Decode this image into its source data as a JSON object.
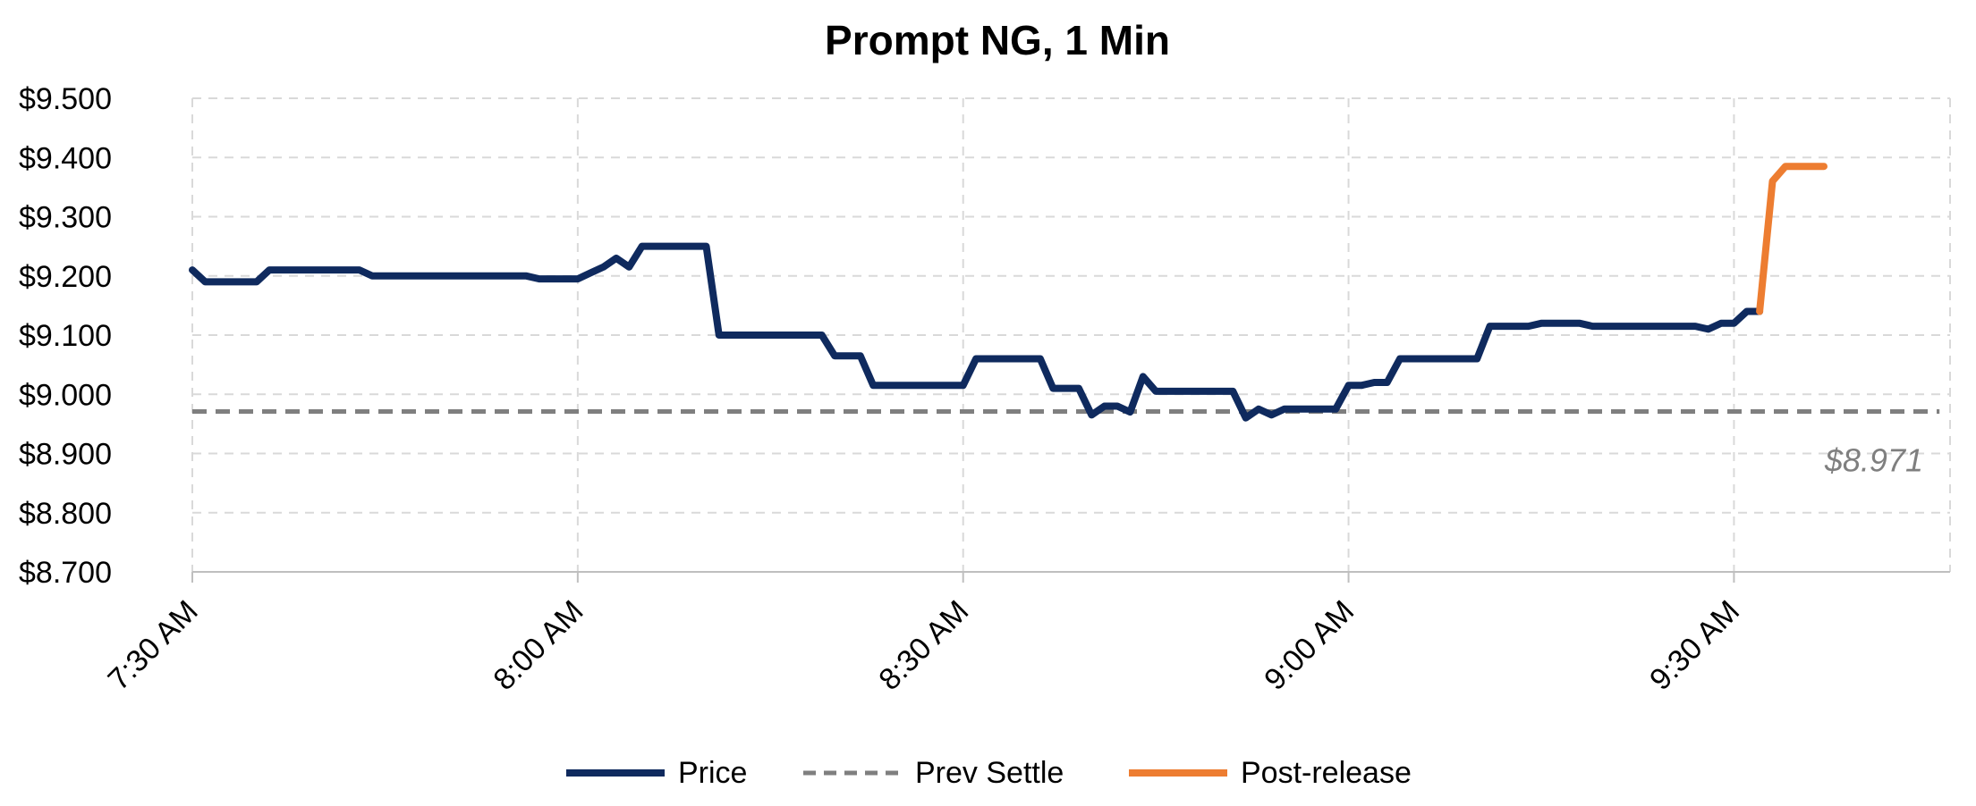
{
  "chart_data": {
    "type": "line",
    "title": "Prompt NG, 1 Min",
    "xlabel": "",
    "ylabel": "",
    "x_ticks": [
      "7:30 AM",
      "8:00 AM",
      "8:30 AM",
      "9:00 AM",
      "9:30 AM"
    ],
    "x_range_minutes_after_730": [
      0,
      136
    ],
    "y_ticks": [
      "$9.500",
      "$9.400",
      "$9.300",
      "$9.200",
      "$9.100",
      "$9.000",
      "$8.900",
      "$8.800",
      "$8.700"
    ],
    "ylim": [
      8.7,
      9.5
    ],
    "grid": true,
    "legend_position": "bottom",
    "colors": {
      "price": "#0f2a5e",
      "prev_settle": "#7f7f7f",
      "post_release": "#ed7d31",
      "grid": "#d9d9d9",
      "axis": "#d9d9d9"
    },
    "series": [
      {
        "name": "Price",
        "style": "solid",
        "points": [
          [
            0,
            9.21
          ],
          [
            1,
            9.19
          ],
          [
            2,
            9.19
          ],
          [
            3,
            9.19
          ],
          [
            4,
            9.19
          ],
          [
            5,
            9.19
          ],
          [
            6,
            9.21
          ],
          [
            7,
            9.21
          ],
          [
            8,
            9.21
          ],
          [
            9,
            9.21
          ],
          [
            10,
            9.21
          ],
          [
            11,
            9.21
          ],
          [
            12,
            9.21
          ],
          [
            13,
            9.21
          ],
          [
            14,
            9.2
          ],
          [
            15,
            9.2
          ],
          [
            16,
            9.2
          ],
          [
            17,
            9.2
          ],
          [
            18,
            9.2
          ],
          [
            19,
            9.2
          ],
          [
            20,
            9.2
          ],
          [
            21,
            9.2
          ],
          [
            22,
            9.2
          ],
          [
            23,
            9.2
          ],
          [
            24,
            9.2
          ],
          [
            25,
            9.2
          ],
          [
            26,
            9.2
          ],
          [
            27,
            9.195
          ],
          [
            28,
            9.195
          ],
          [
            29,
            9.195
          ],
          [
            30,
            9.195
          ],
          [
            31,
            9.205
          ],
          [
            32,
            9.215
          ],
          [
            33,
            9.23
          ],
          [
            34,
            9.215
          ],
          [
            35,
            9.25
          ],
          [
            36,
            9.25
          ],
          [
            37,
            9.25
          ],
          [
            38,
            9.25
          ],
          [
            39,
            9.25
          ],
          [
            40,
            9.25
          ],
          [
            41,
            9.1
          ],
          [
            42,
            9.1
          ],
          [
            43,
            9.1
          ],
          [
            44,
            9.1
          ],
          [
            45,
            9.1
          ],
          [
            46,
            9.1
          ],
          [
            47,
            9.1
          ],
          [
            48,
            9.1
          ],
          [
            49,
            9.1
          ],
          [
            50,
            9.065
          ],
          [
            51,
            9.065
          ],
          [
            52,
            9.065
          ],
          [
            53,
            9.015
          ],
          [
            54,
            9.015
          ],
          [
            55,
            9.015
          ],
          [
            56,
            9.015
          ],
          [
            57,
            9.015
          ],
          [
            58,
            9.015
          ],
          [
            59,
            9.015
          ],
          [
            60,
            9.015
          ],
          [
            61,
            9.06
          ],
          [
            62,
            9.06
          ],
          [
            63,
            9.06
          ],
          [
            64,
            9.06
          ],
          [
            65,
            9.06
          ],
          [
            66,
            9.06
          ],
          [
            67,
            9.01
          ],
          [
            68,
            9.01
          ],
          [
            69,
            9.01
          ],
          [
            70,
            8.965
          ],
          [
            71,
            8.98
          ],
          [
            72,
            8.98
          ],
          [
            73,
            8.97
          ],
          [
            74,
            9.03
          ],
          [
            75,
            9.005
          ],
          [
            76,
            9.005
          ],
          [
            77,
            9.005
          ],
          [
            78,
            9.005
          ],
          [
            79,
            9.005
          ],
          [
            80,
            9.005
          ],
          [
            81,
            9.005
          ],
          [
            82,
            8.96
          ],
          [
            83,
            8.975
          ],
          [
            84,
            8.965
          ],
          [
            85,
            8.975
          ],
          [
            86,
            8.975
          ],
          [
            87,
            8.975
          ],
          [
            88,
            8.975
          ],
          [
            89,
            8.975
          ],
          [
            90,
            9.015
          ],
          [
            91,
            9.015
          ],
          [
            92,
            9.02
          ],
          [
            93,
            9.02
          ],
          [
            94,
            9.06
          ],
          [
            95,
            9.06
          ],
          [
            96,
            9.06
          ],
          [
            97,
            9.06
          ],
          [
            98,
            9.06
          ],
          [
            99,
            9.06
          ],
          [
            100,
            9.06
          ],
          [
            101,
            9.115
          ],
          [
            102,
            9.115
          ],
          [
            103,
            9.115
          ],
          [
            104,
            9.115
          ],
          [
            105,
            9.12
          ],
          [
            106,
            9.12
          ],
          [
            107,
            9.12
          ],
          [
            108,
            9.12
          ],
          [
            109,
            9.115
          ],
          [
            110,
            9.115
          ],
          [
            111,
            9.115
          ],
          [
            112,
            9.115
          ],
          [
            113,
            9.115
          ],
          [
            114,
            9.115
          ],
          [
            115,
            9.115
          ],
          [
            116,
            9.115
          ],
          [
            117,
            9.115
          ],
          [
            118,
            9.11
          ],
          [
            119,
            9.12
          ],
          [
            120,
            9.12
          ],
          [
            121,
            9.14
          ],
          [
            122,
            9.14
          ]
        ]
      },
      {
        "name": "Prev Settle",
        "style": "dashed",
        "points": [
          [
            0,
            8.971
          ],
          [
            136,
            8.971
          ]
        ]
      },
      {
        "name": "Post-release",
        "style": "solid",
        "points": [
          [
            122,
            9.14
          ],
          [
            123,
            9.36
          ],
          [
            124,
            9.385
          ],
          [
            125,
            9.385
          ],
          [
            126,
            9.385
          ],
          [
            127,
            9.385
          ]
        ]
      }
    ],
    "annotations": [
      {
        "text": "$8.971",
        "color": "#7f7f7f"
      }
    ]
  }
}
